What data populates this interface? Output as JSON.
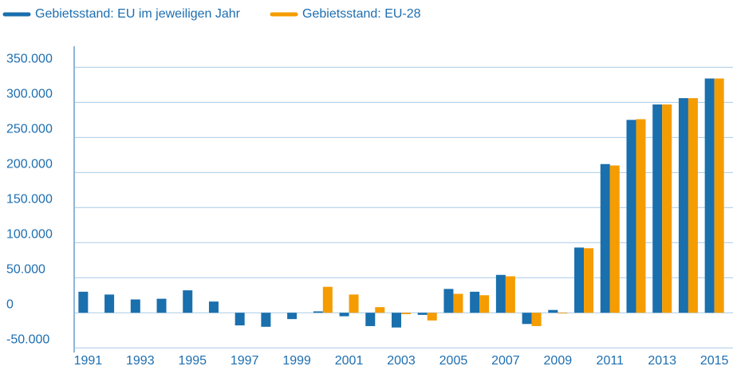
{
  "chart_data": {
    "type": "bar",
    "categories": [
      "1991",
      null,
      "1993",
      null,
      "1995",
      null,
      "1997",
      null,
      "1999",
      null,
      "2001",
      null,
      "2003",
      null,
      "2005",
      null,
      "2007",
      null,
      "2009",
      null,
      "2011",
      null,
      "2013",
      null,
      "2015"
    ],
    "series": [
      {
        "name": "Gebietsstand: EU im jeweiligen Jahr",
        "color": "#1a6fad",
        "values": [
          30000,
          26000,
          19000,
          20000,
          32000,
          16000,
          -18000,
          -20000,
          -9000,
          2000,
          -5000,
          -19000,
          -21000,
          -3000,
          34000,
          30000,
          54000,
          -16000,
          4000,
          93000,
          212000,
          275000,
          297000,
          306000,
          334000
        ]
      },
      {
        "name": "Gebietsstand: EU-28",
        "color": "#f59c00",
        "values": [
          null,
          null,
          null,
          null,
          null,
          null,
          null,
          null,
          null,
          37000,
          26000,
          8000,
          -2000,
          -11000,
          27000,
          25000,
          52000,
          -19000,
          -1000,
          92000,
          210000,
          276000,
          297000,
          306000,
          334000
        ]
      }
    ],
    "ylim": [
      -60000,
      380000
    ],
    "yticks": [
      {
        "value": -50000,
        "label": "-50.000"
      },
      0,
      {
        "value": 50000,
        "label": "50.000"
      },
      {
        "value": 100000,
        "label": "100.000"
      },
      {
        "value": 150000,
        "label": "150.000"
      },
      {
        "value": 200000,
        "label": "200.000"
      },
      {
        "value": 250000,
        "label": "250.000"
      },
      {
        "value": 300000,
        "label": "300.000"
      },
      {
        "value": 350000,
        "label": "350.000"
      }
    ],
    "grid": true
  }
}
